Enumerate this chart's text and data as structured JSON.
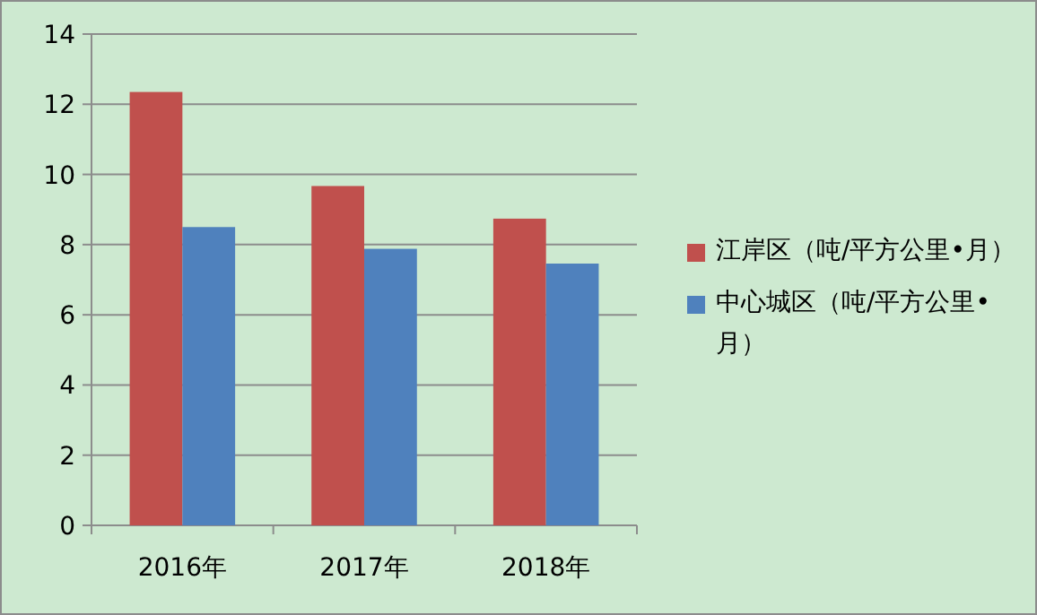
{
  "chart_data": {
    "type": "bar",
    "categories": [
      "2016年",
      "2017年",
      "2018年"
    ],
    "series": [
      {
        "name": "江岸区（吨/平方公里•月）",
        "color": "#c0504d",
        "values": [
          12.35,
          9.67,
          8.74
        ]
      },
      {
        "name": "中心城区（吨/平方公里•月）",
        "color": "#4f81bd",
        "values": [
          8.5,
          7.88,
          7.46
        ]
      }
    ],
    "ylim": [
      0,
      14
    ],
    "yticks": [
      0,
      2,
      4,
      6,
      8,
      10,
      12,
      14
    ],
    "grid": "y",
    "legend": "right"
  }
}
